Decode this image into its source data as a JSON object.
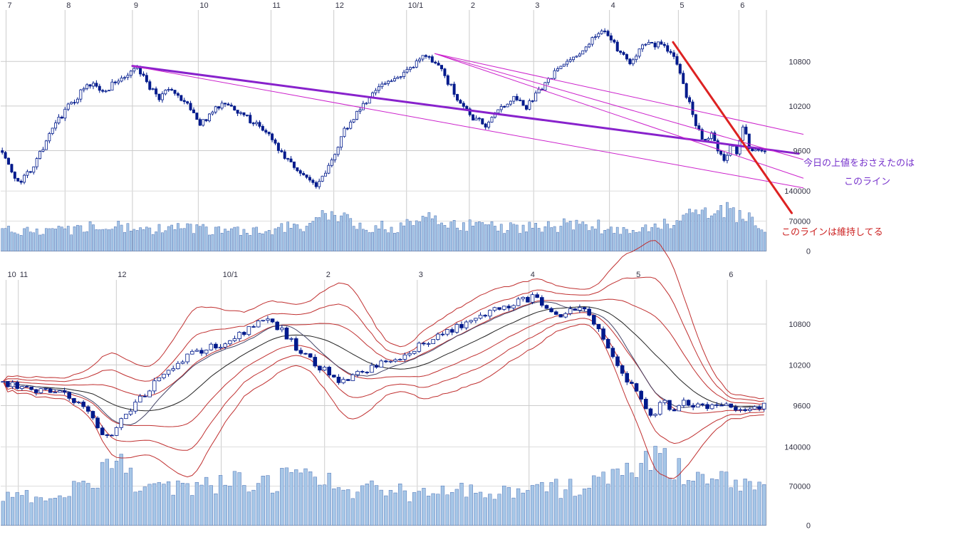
{
  "colors": {
    "background": "#FFFFFF",
    "candle": "#001A8C",
    "candle_up_fill": "#FFFFFF",
    "volume_fill": "#A7C7E7",
    "volume_stroke": "#4A6FB5",
    "grid": "#CCCCCC",
    "grid_light": "#DDDDDD",
    "baseline": "#AAAAAA",
    "axis_text": "#333344",
    "accent_purple": "#7733CC",
    "accent_magenta": "#CC22CC",
    "accent_red": "#DD2222"
  },
  "chart_data": [
    {
      "type": "candlestick",
      "timeframe": "daily",
      "has_volume": true,
      "x_ticks": [
        {
          "label": "7",
          "f": 0.007
        },
        {
          "label": "8",
          "f": 0.084
        },
        {
          "label": "9",
          "f": 0.172
        },
        {
          "label": "10",
          "f": 0.258
        },
        {
          "label": "11",
          "f": 0.353
        },
        {
          "label": "12",
          "f": 0.435
        },
        {
          "label": "10/1",
          "f": 0.53
        },
        {
          "label": "2",
          "f": 0.612
        },
        {
          "label": "3",
          "f": 0.696
        },
        {
          "label": "4",
          "f": 0.795
        },
        {
          "label": "5",
          "f": 0.885
        },
        {
          "label": "6",
          "f": 0.964
        }
      ],
      "y_ticks_price": [
        {
          "label": "10800",
          "value": 10800
        },
        {
          "label": "10200",
          "value": 10200
        },
        {
          "label": "9600",
          "value": 9600
        }
      ],
      "y_ticks_volume": [
        {
          "label": "140000",
          "value": 140000
        },
        {
          "label": "70000",
          "value": 70000
        },
        {
          "label": "0",
          "value": 0
        }
      ],
      "price_keypoints": [
        [
          0.0,
          9620
        ],
        [
          0.008,
          9400
        ],
        [
          0.02,
          9150
        ],
        [
          0.032,
          9260
        ],
        [
          0.048,
          9550
        ],
        [
          0.065,
          9850
        ],
        [
          0.082,
          10150
        ],
        [
          0.1,
          10350
        ],
        [
          0.118,
          10500
        ],
        [
          0.13,
          10380
        ],
        [
          0.148,
          10520
        ],
        [
          0.163,
          10620
        ],
        [
          0.174,
          10730
        ],
        [
          0.19,
          10500
        ],
        [
          0.205,
          10300
        ],
        [
          0.22,
          10420
        ],
        [
          0.238,
          10280
        ],
        [
          0.258,
          9950
        ],
        [
          0.272,
          10080
        ],
        [
          0.29,
          10280
        ],
        [
          0.308,
          10150
        ],
        [
          0.328,
          9990
        ],
        [
          0.348,
          9830
        ],
        [
          0.368,
          9560
        ],
        [
          0.392,
          9300
        ],
        [
          0.412,
          9100
        ],
        [
          0.428,
          9400
        ],
        [
          0.448,
          9850
        ],
        [
          0.468,
          10150
        ],
        [
          0.49,
          10420
        ],
        [
          0.512,
          10540
        ],
        [
          0.535,
          10680
        ],
        [
          0.556,
          10900
        ],
        [
          0.572,
          10740
        ],
        [
          0.588,
          10460
        ],
        [
          0.603,
          10220
        ],
        [
          0.618,
          10040
        ],
        [
          0.633,
          9940
        ],
        [
          0.652,
          10140
        ],
        [
          0.67,
          10290
        ],
        [
          0.688,
          10190
        ],
        [
          0.708,
          10440
        ],
        [
          0.728,
          10680
        ],
        [
          0.748,
          10860
        ],
        [
          0.768,
          11040
        ],
        [
          0.788,
          11200
        ],
        [
          0.8,
          11080
        ],
        [
          0.812,
          10880
        ],
        [
          0.822,
          10780
        ],
        [
          0.835,
          10960
        ],
        [
          0.85,
          11070
        ],
        [
          0.862,
          11010
        ],
        [
          0.876,
          10920
        ],
        [
          0.888,
          10680
        ],
        [
          0.9,
          10250
        ],
        [
          0.91,
          9950
        ],
        [
          0.92,
          9700
        ],
        [
          0.93,
          9870
        ],
        [
          0.938,
          9620
        ],
        [
          0.948,
          9460
        ],
        [
          0.956,
          9680
        ],
        [
          0.964,
          9560
        ],
        [
          0.972,
          9940
        ],
        [
          0.98,
          9590
        ],
        [
          0.988,
          9640
        ],
        [
          0.994,
          9560
        ],
        [
          1.0,
          9600
        ]
      ],
      "volume_keypoints": [
        [
          0.0,
          52000
        ],
        [
          0.04,
          46000
        ],
        [
          0.08,
          50000
        ],
        [
          0.12,
          58000
        ],
        [
          0.14,
          64000
        ],
        [
          0.17,
          54000
        ],
        [
          0.2,
          50000
        ],
        [
          0.24,
          52000
        ],
        [
          0.28,
          47000
        ],
        [
          0.32,
          45000
        ],
        [
          0.36,
          49000
        ],
        [
          0.4,
          60000
        ],
        [
          0.425,
          78000
        ],
        [
          0.435,
          112000
        ],
        [
          0.445,
          80000
        ],
        [
          0.47,
          62000
        ],
        [
          0.5,
          56000
        ],
        [
          0.54,
          60000
        ],
        [
          0.57,
          76000
        ],
        [
          0.6,
          62000
        ],
        [
          0.64,
          55000
        ],
        [
          0.68,
          52000
        ],
        [
          0.72,
          56000
        ],
        [
          0.75,
          62000
        ],
        [
          0.78,
          57000
        ],
        [
          0.82,
          52000
        ],
        [
          0.85,
          58000
        ],
        [
          0.88,
          68000
        ],
        [
          0.9,
          88000
        ],
        [
          0.92,
          98000
        ],
        [
          0.94,
          92000
        ],
        [
          0.96,
          86000
        ],
        [
          0.98,
          72000
        ],
        [
          1.0,
          56000
        ]
      ],
      "trendlines": [
        {
          "name": "resistance-purple-thick",
          "color": "#8822CC",
          "width": 3,
          "from": [
            0.172,
            10740
          ],
          "to": [
            1.042,
            9560
          ]
        },
        {
          "name": "fan-magenta-1",
          "color": "#CC22CC",
          "width": 1,
          "from": [
            0.567,
            10905
          ],
          "to": [
            1.048,
            9820
          ]
        },
        {
          "name": "fan-magenta-2",
          "color": "#CC22CC",
          "width": 1,
          "from": [
            0.567,
            10905
          ],
          "to": [
            1.048,
            9480
          ]
        },
        {
          "name": "fan-magenta-3",
          "color": "#CC22CC",
          "width": 1,
          "from": [
            0.567,
            10905
          ],
          "to": [
            1.048,
            9230
          ]
        },
        {
          "name": "fan-magenta-long",
          "color": "#CC22CC",
          "width": 1,
          "from": [
            0.172,
            10740
          ],
          "to": [
            1.048,
            9100
          ]
        },
        {
          "name": "support-red-thick",
          "color": "#DD2222",
          "width": 3,
          "from": [
            0.878,
            11060
          ],
          "to": [
            1.033,
            8760
          ]
        }
      ],
      "annotations": [
        {
          "text": "今日の上値をおさえたのは",
          "color": "#7733CC",
          "x": 1128,
          "y": 222
        },
        {
          "text": "このライン",
          "color": "#7733CC",
          "x": 1185,
          "y": 248
        },
        {
          "text": "このラインは維持してる",
          "color": "#CC2222",
          "x": 1097,
          "y": 319
        }
      ],
      "render_hints": {
        "candles": 244,
        "seed": 7,
        "noise_amp": 45
      }
    },
    {
      "type": "candlestick",
      "timeframe": "daily",
      "has_volume": true,
      "overlay": "bollinger-bands",
      "x_ticks": [
        {
          "label": "10",
          "f": 0.007
        },
        {
          "label": "11",
          "f": 0.023
        },
        {
          "label": "12",
          "f": 0.151
        },
        {
          "label": "10/1",
          "f": 0.288
        },
        {
          "label": "2",
          "f": 0.423
        },
        {
          "label": "3",
          "f": 0.544
        },
        {
          "label": "4",
          "f": 0.69
        },
        {
          "label": "5",
          "f": 0.828
        },
        {
          "label": "6",
          "f": 0.949
        }
      ],
      "y_ticks_price": [
        {
          "label": "10800",
          "value": 10800
        },
        {
          "label": "10200",
          "value": 10200
        },
        {
          "label": "9600",
          "value": 9600
        }
      ],
      "y_ticks_volume": [
        {
          "label": "140000",
          "value": 140000
        },
        {
          "label": "70000",
          "value": 70000
        },
        {
          "label": "0",
          "value": 0
        }
      ],
      "price_keypoints": [
        [
          0.0,
          9950
        ],
        [
          0.02,
          9880
        ],
        [
          0.045,
          9830
        ],
        [
          0.07,
          9820
        ],
        [
          0.09,
          9700
        ],
        [
          0.11,
          9500
        ],
        [
          0.125,
          9280
        ],
        [
          0.138,
          9120
        ],
        [
          0.152,
          9340
        ],
        [
          0.17,
          9580
        ],
        [
          0.195,
          9880
        ],
        [
          0.22,
          10120
        ],
        [
          0.25,
          10380
        ],
        [
          0.285,
          10500
        ],
        [
          0.315,
          10680
        ],
        [
          0.342,
          10880
        ],
        [
          0.365,
          10720
        ],
        [
          0.385,
          10460
        ],
        [
          0.405,
          10260
        ],
        [
          0.425,
          10100
        ],
        [
          0.445,
          9950
        ],
        [
          0.465,
          10060
        ],
        [
          0.495,
          10200
        ],
        [
          0.525,
          10340
        ],
        [
          0.555,
          10540
        ],
        [
          0.585,
          10700
        ],
        [
          0.615,
          10850
        ],
        [
          0.645,
          11000
        ],
        [
          0.675,
          11120
        ],
        [
          0.7,
          11200
        ],
        [
          0.715,
          11060
        ],
        [
          0.73,
          10920
        ],
        [
          0.748,
          11010
        ],
        [
          0.762,
          11100
        ],
        [
          0.78,
          10760
        ],
        [
          0.8,
          10380
        ],
        [
          0.818,
          10020
        ],
        [
          0.838,
          9700
        ],
        [
          0.855,
          9420
        ],
        [
          0.868,
          9700
        ],
        [
          0.88,
          9520
        ],
        [
          0.895,
          9660
        ],
        [
          0.912,
          9600
        ],
        [
          0.93,
          9560
        ],
        [
          0.95,
          9620
        ],
        [
          0.965,
          9500
        ],
        [
          0.98,
          9560
        ],
        [
          1.0,
          9590
        ]
      ],
      "volume_keypoints": [
        [
          0.0,
          58000
        ],
        [
          0.04,
          54000
        ],
        [
          0.08,
          62000
        ],
        [
          0.11,
          72000
        ],
        [
          0.135,
          95000
        ],
        [
          0.15,
          108000
        ],
        [
          0.17,
          82000
        ],
        [
          0.2,
          70000
        ],
        [
          0.24,
          66000
        ],
        [
          0.28,
          72000
        ],
        [
          0.32,
          82000
        ],
        [
          0.35,
          72000
        ],
        [
          0.38,
          88000
        ],
        [
          0.4,
          96000
        ],
        [
          0.43,
          72000
        ],
        [
          0.47,
          64000
        ],
        [
          0.51,
          60000
        ],
        [
          0.55,
          56000
        ],
        [
          0.59,
          60000
        ],
        [
          0.63,
          64000
        ],
        [
          0.67,
          60000
        ],
        [
          0.71,
          64000
        ],
        [
          0.75,
          68000
        ],
        [
          0.79,
          76000
        ],
        [
          0.82,
          92000
        ],
        [
          0.845,
          118000
        ],
        [
          0.86,
          132000
        ],
        [
          0.875,
          108000
        ],
        [
          0.9,
          92000
        ],
        [
          0.92,
          88000
        ],
        [
          0.94,
          84000
        ],
        [
          0.96,
          76000
        ],
        [
          0.98,
          68000
        ],
        [
          1.0,
          58000
        ]
      ],
      "bollinger": {
        "window": 20,
        "multipliers": [
          1,
          2,
          3
        ],
        "band_color": "#C03030",
        "center_color": "#222222",
        "short_window": 9,
        "short_color": "#444466"
      },
      "trendlines": [],
      "annotations": [],
      "render_hints": {
        "candles": 162,
        "seed": 13,
        "noise_amp": 50
      }
    }
  ]
}
